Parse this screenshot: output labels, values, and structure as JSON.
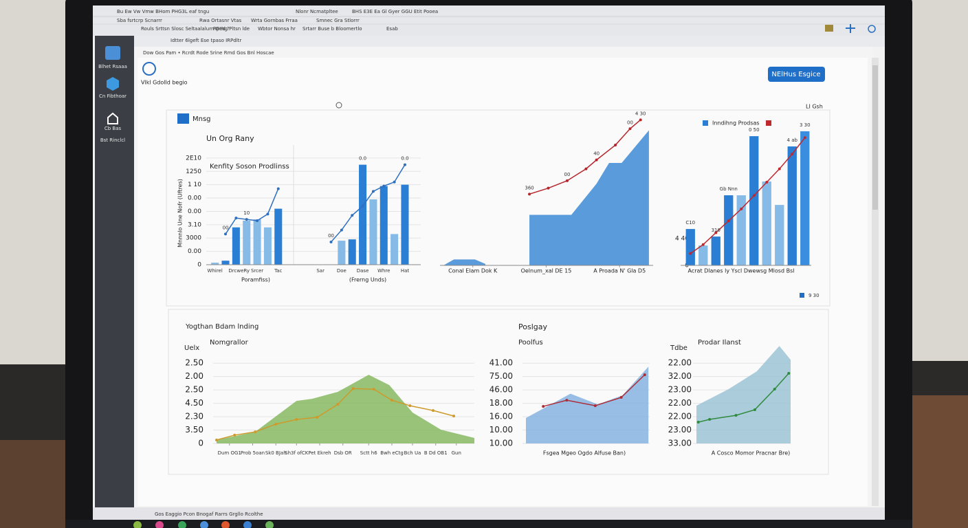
{
  "browser": {
    "menu": [
      "Bu  Ew  Vw  Vmw  BHom  PHG3L  eaf tngu",
      "Nlonr Ncmatpltee",
      "BHS  E3E  Ea  Gl  Gyer GGU  Etit  Pooea"
    ],
    "bookmarks": [
      "Sba fsrtcrp Scnarrr",
      "Rwa Ortasnr Vtas",
      "Wrta Gornbas Frraa",
      "Smnec Gra Stlorrr",
      "Rouls Srttsn Slosc Seltaalalurn Ged ?",
      "Rpthg Pltsn lde",
      "Wbtor Nonsa hr",
      "Srtarr Buse b Bloomertlo",
      "Esab"
    ],
    "tabs": "Idtter 6lgeft  Ese tpaso IRPdltr"
  },
  "sidebar": {
    "items": [
      "Blhet Rsaaa",
      "Cn Fibthoar",
      "Cb Bas",
      "Bst Rinclcl"
    ]
  },
  "page": {
    "breadcrumb": "Dow Gos Pam  •  Rcrdt Rode Srine Rmd  Gos Bnl Hoscae",
    "brand": "Vlkl Gdolld begio",
    "button": "NElHus Esgice",
    "date": "LI Gsh",
    "panel_title": "Mnsg",
    "note": "9 30",
    "section_title": "Yogthan Bdam lnding",
    "status": "Gos Eaggio Pcon Bnogaf Rarrs Grgllo Rcolthe"
  },
  "chart_data": [
    {
      "type": "bar",
      "title": "Un Org Rany",
      "subtitle": "Kenfity Soson Prodlinss",
      "y_label": "Mnnnlo Une Nofr (Uftres)",
      "x_label": [
        "Poramfiss)",
        "(Frerng Unds)"
      ],
      "grid": true,
      "ylim": [
        0,
        8.2
      ],
      "yticks": [
        0,
        {
          "value": 1,
          "label": "0.00"
        },
        {
          "value": 2,
          "label": "3000"
        },
        {
          "value": 3,
          "label": "3.10"
        },
        {
          "value": 4,
          "label": "0.00"
        },
        {
          "value": 5,
          "label": "0.00"
        },
        {
          "value": 6,
          "label": "1 10"
        },
        {
          "value": 7,
          "label": "1250"
        },
        {
          "value": 8,
          "label": "2E10"
        }
      ],
      "categories": [
        "Whirel",
        null,
        "Drcwe",
        "Ry",
        "Srcer",
        null,
        "Tac",
        null,
        null,
        null,
        "Sar",
        null,
        "Doe",
        null,
        "Dase",
        null,
        "Whre",
        null,
        "Hat",
        null
      ],
      "series": [
        {
          "type": "bar",
          "colors": [
            "#86bbe8",
            "#2a7fd4",
            "#2a7fd4",
            "#86bbe8",
            "#86bbe8",
            "#86bbe8",
            "#2a7fd4",
            null,
            null,
            null,
            null,
            null,
            "#86bbe8",
            "#2a7fd4",
            "#2a7fd4",
            "#86bbe8",
            "#2a7fd4",
            "#86bbe8",
            "#2a7fd4",
            null
          ],
          "values": [
            0.15,
            0.3,
            2.8,
            3.3,
            3.4,
            2.8,
            4.2,
            null,
            null,
            null,
            null,
            null,
            1.8,
            1.9,
            7.5,
            4.9,
            5.9,
            2.3,
            6.0,
            null
          ]
        },
        {
          "type": "line",
          "color": "#2f6fbf",
          "values": [
            null,
            2.3,
            3.5,
            3.4,
            3.3,
            3.8,
            5.7,
            null,
            null,
            null,
            null,
            1.7,
            2.6,
            3.7,
            4.4,
            5.5,
            5.9,
            6.2,
            7.5,
            null
          ]
        }
      ],
      "annotations": [
        {
          "text": "00",
          "series": 1,
          "point": 1
        },
        {
          "text": "10",
          "series": 1,
          "point": 3
        },
        {
          "text": "00",
          "series": 1,
          "point": 11
        },
        {
          "text": "0.0",
          "series": 0,
          "point": 14
        },
        {
          "text": "0.0",
          "series": 1,
          "point": 18
        }
      ]
    },
    {
      "type": "area",
      "xlim": [
        0,
        100
      ],
      "ylim": [
        0,
        100
      ],
      "xticks": [
        {
          "value": 14,
          "label": "Conal Elam Dok K"
        },
        {
          "value": 49,
          "label": "Oelnum_xal DE 15"
        },
        {
          "value": 84,
          "label": "A Proada N' Gla D5"
        }
      ],
      "series": [
        {
          "type": "area",
          "color": "#3d8ad6",
          "x": [
            0,
            5,
            15,
            20,
            24,
            41,
            41,
            61,
            73,
            79,
            85,
            98
          ],
          "values": [
            0,
            4,
            4,
            1,
            null,
            0,
            34,
            34,
            55,
            69,
            69,
            91
          ]
        },
        {
          "type": "line",
          "color": "#b5262c",
          "x": [
            41,
            50,
            59,
            68,
            73,
            82,
            89,
            94
          ],
          "values": [
            48,
            52,
            57,
            65,
            71,
            81,
            92,
            98
          ]
        }
      ],
      "annotations": [
        {
          "text": "360",
          "series": 1,
          "point": 0
        },
        {
          "text": "00",
          "series": 1,
          "point": 2
        },
        {
          "text": "40",
          "series": 1,
          "point": 4
        },
        {
          "text": "00",
          "series": 1,
          "point": 6
        },
        {
          "text": "4 30",
          "series": 1,
          "point": 7
        }
      ]
    },
    {
      "type": "bar",
      "x_label": "Acrat Dlanes ly Yscl Dwewsg Mlosd Bsl",
      "ylim": [
        0,
        100
      ],
      "yticks": [
        0,
        {
          "value": 18,
          "label": "4 40"
        }
      ],
      "categories": [
        null,
        null,
        null,
        null,
        null,
        null,
        null,
        null,
        null,
        null
      ],
      "series": [
        {
          "type": "bar",
          "name": "Inndihng Prodsas",
          "color": "#2a7fd4",
          "colors": [
            "#2a7fd4",
            "#86bbe8",
            "#2a7fd4",
            "#2a7fd4",
            "#86bbe8",
            "#2a7fd4",
            "#86bbe8",
            "#86bbe8",
            "#2a7fd4",
            "#3a8ee0"
          ],
          "values": [
            24.5,
            13.4,
            19.4,
            47.2,
            47.2,
            87,
            56.5,
            40.7,
            80.1,
            90.3
          ]
        },
        {
          "type": "line",
          "color": "#c0282d",
          "values": [
            8,
            14,
            22,
            30,
            38,
            47,
            56,
            65,
            75,
            86
          ]
        }
      ],
      "annotations": [
        {
          "text": "C10",
          "series": 0,
          "point": 0
        },
        {
          "text": "310",
          "series": 0,
          "point": 2
        },
        {
          "text": "Gb Nnn",
          "series": 0,
          "point": 3
        },
        {
          "text": "0 50",
          "series": 0,
          "point": 5
        },
        {
          "text": "4 ab",
          "series": 0,
          "point": 8
        },
        {
          "text": "3 30",
          "series": 0,
          "point": 9
        }
      ]
    },
    {
      "type": "area",
      "subtitle": "Nomgrallor",
      "y_label": "Uelx",
      "grid": true,
      "xlim": [
        0,
        100
      ],
      "ylim": [
        0,
        7.5
      ],
      "yticks": [
        0,
        {
          "value": 1,
          "label": "3.50"
        },
        {
          "value": 2,
          "label": "2.30"
        },
        {
          "value": 3,
          "label": "4.50"
        },
        {
          "value": 4,
          "label": "2.50"
        },
        {
          "value": 5,
          "label": "2.00"
        },
        {
          "value": 6,
          "label": "2.50"
        }
      ],
      "xticks": [
        {
          "value": 5,
          "label": "Dum OG1"
        },
        {
          "value": 14,
          "label": "Prob 5oan"
        },
        {
          "value": 23,
          "label": "Sk0 BJah"
        },
        {
          "value": 31,
          "label": "Sh3f ofCK"
        },
        {
          "value": 40,
          "label": "Pet Ekreh"
        },
        {
          "value": 49,
          "label": "Dsb OR"
        },
        {
          "value": 59,
          "label": "Sctt h6"
        },
        {
          "value": 68,
          "label": "Bwh eCtg"
        },
        {
          "value": 76,
          "label": "Bch Ua"
        },
        {
          "value": 85,
          "label": "B Dd OB1"
        },
        {
          "value": 93,
          "label": "Gun"
        }
      ],
      "series": [
        {
          "type": "area",
          "color": "#86b960",
          "x": [
            0,
            15,
            31,
            37,
            47,
            59,
            67,
            76,
            87,
            100
          ],
          "values": [
            0.26,
            0.87,
            3.18,
            3.33,
            3.85,
            5.13,
            4.36,
            2.31,
            1.03,
            0.41
          ]
        },
        {
          "type": "line",
          "color": "#cf9a2c",
          "x": [
            0,
            7,
            15,
            23,
            31,
            39,
            47,
            53,
            61,
            68,
            75,
            84,
            92
          ],
          "values": [
            0.26,
            0.62,
            0.87,
            1.44,
            1.79,
            1.95,
            2.92,
            4.1,
            4.05,
            3.23,
            2.82,
            2.46,
            2.05
          ]
        }
      ]
    },
    {
      "type": "area",
      "title": "Poslgay",
      "subtitle": "Poolfus",
      "x_label": "Fsgea Mgeo Ogdo Alfuse Ban)",
      "grid": true,
      "xlim": [
        0,
        100
      ],
      "ylim": [
        0,
        7.5
      ],
      "yticks": [
        {
          "value": 0,
          "label": "10.00"
        },
        {
          "value": 1,
          "label": "10.00"
        },
        {
          "value": 2,
          "label": "16.00"
        },
        {
          "value": 3,
          "label": "18.00"
        },
        {
          "value": 4,
          "label": "46.00"
        },
        {
          "value": 5,
          "label": "75.00"
        },
        {
          "value": 6,
          "label": "41.00"
        }
      ],
      "series": [
        {
          "type": "area",
          "color": "#86b3e0",
          "x": [
            0,
            36,
            58,
            78,
            99
          ],
          "values": [
            1.9,
            3.72,
            2.92,
            3.59,
            5.74
          ]
        },
        {
          "type": "line",
          "color": "#ad2d36",
          "x": [
            14,
            33,
            56,
            77,
            96
          ],
          "values": [
            2.77,
            3.23,
            2.82,
            3.44,
            5.13
          ]
        }
      ]
    },
    {
      "type": "area",
      "subtitle": "Prodar Ilanst",
      "y_label": "Tdbe",
      "x_label": "A Cosco Momor Pracnar Bre)",
      "grid": true,
      "xlim": [
        0,
        100
      ],
      "ylim": [
        0,
        7.5
      ],
      "yticks": [
        {
          "value": 0,
          "label": "33.00"
        },
        {
          "value": 1,
          "label": "23.00"
        },
        {
          "value": 2,
          "label": "22.00"
        },
        {
          "value": 3,
          "label": "22.00"
        },
        {
          "value": 4,
          "label": "23.00"
        },
        {
          "value": 5,
          "label": "32.00"
        },
        {
          "value": 6,
          "label": "22.00"
        }
      ],
      "series": [
        {
          "type": "area",
          "color": "#9cc3d4",
          "x": [
            0,
            34,
            64,
            88,
            100
          ],
          "values": [
            2.82,
            4.05,
            5.38,
            7.28,
            6.25
          ]
        },
        {
          "type": "line",
          "color": "#2e8b3d",
          "x": [
            2,
            14,
            42,
            62,
            83,
            98
          ],
          "values": [
            1.59,
            1.8,
            2.1,
            2.52,
            4.06,
            5.24
          ]
        }
      ]
    }
  ]
}
